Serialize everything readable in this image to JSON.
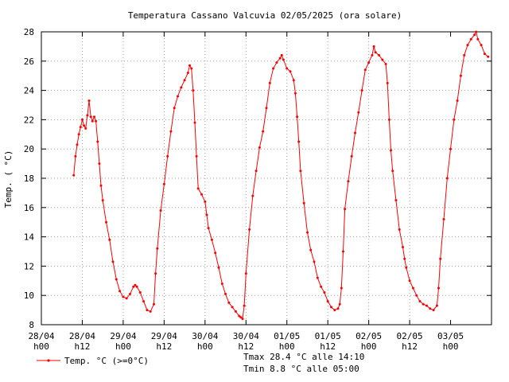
{
  "chart_data": {
    "type": "line",
    "title": "Temperatura Cassano Valcuvia 02/05/2025 (ora solare)",
    "ylabel": "Temp. ( °C)",
    "xlabel": "",
    "ylim": [
      8,
      28
    ],
    "y_ticks": [
      8,
      10,
      12,
      14,
      16,
      18,
      20,
      22,
      24,
      26,
      28
    ],
    "xlim_hours": [
      0,
      132
    ],
    "x_ticks": [
      {
        "hour": 0,
        "line1": "28/04",
        "line2": "h00"
      },
      {
        "hour": 12,
        "line1": "28/04",
        "line2": "h12"
      },
      {
        "hour": 24,
        "line1": "29/04",
        "line2": "h00"
      },
      {
        "hour": 36,
        "line1": "29/04",
        "line2": "h12"
      },
      {
        "hour": 48,
        "line1": "30/04",
        "line2": "h00"
      },
      {
        "hour": 60,
        "line1": "30/04",
        "line2": "h12"
      },
      {
        "hour": 72,
        "line1": "01/05",
        "line2": "h00"
      },
      {
        "hour": 84,
        "line1": "01/05",
        "line2": "h12"
      },
      {
        "hour": 96,
        "line1": "02/05",
        "line2": "h00"
      },
      {
        "hour": 108,
        "line1": "02/05",
        "line2": "h12"
      },
      {
        "hour": 120,
        "line1": "03/05",
        "line2": "h00"
      }
    ],
    "grid": true,
    "legend_position": "bottom-left",
    "series": [
      {
        "name": "Temp. °C (>=0°C)",
        "color": "#ff0000",
        "points": [
          [
            9.5,
            18.2
          ],
          [
            10,
            19.5
          ],
          [
            10.5,
            20.3
          ],
          [
            11,
            21.0
          ],
          [
            11.5,
            21.5
          ],
          [
            12,
            22.0
          ],
          [
            12.5,
            21.6
          ],
          [
            13,
            21.4
          ],
          [
            13.5,
            22.3
          ],
          [
            14,
            23.3
          ],
          [
            14.5,
            22.2
          ],
          [
            15,
            21.9
          ],
          [
            15.5,
            22.2
          ],
          [
            16,
            21.9
          ],
          [
            16.5,
            20.5
          ],
          [
            17,
            19.0
          ],
          [
            17.5,
            17.5
          ],
          [
            18,
            16.5
          ],
          [
            19,
            15.0
          ],
          [
            20,
            13.8
          ],
          [
            21,
            12.3
          ],
          [
            22,
            11.1
          ],
          [
            23,
            10.3
          ],
          [
            24,
            9.9
          ],
          [
            25,
            9.8
          ],
          [
            26,
            10.1
          ],
          [
            27,
            10.6
          ],
          [
            27.5,
            10.7
          ],
          [
            28,
            10.6
          ],
          [
            29,
            10.2
          ],
          [
            30,
            9.6
          ],
          [
            31,
            9.0
          ],
          [
            32,
            8.9
          ],
          [
            33,
            9.4
          ],
          [
            33.5,
            11.5
          ],
          [
            34,
            13.2
          ],
          [
            35,
            15.8
          ],
          [
            36,
            17.6
          ],
          [
            37,
            19.5
          ],
          [
            38,
            21.2
          ],
          [
            39,
            22.8
          ],
          [
            40,
            23.6
          ],
          [
            41,
            24.2
          ],
          [
            42,
            24.7
          ],
          [
            43,
            25.2
          ],
          [
            43.5,
            25.7
          ],
          [
            44,
            25.5
          ],
          [
            44.5,
            24.0
          ],
          [
            45,
            21.8
          ],
          [
            45.5,
            19.5
          ],
          [
            46,
            17.3
          ],
          [
            47,
            16.9
          ],
          [
            48,
            16.4
          ],
          [
            48.5,
            15.5
          ],
          [
            49,
            14.6
          ],
          [
            50,
            13.8
          ],
          [
            51,
            12.9
          ],
          [
            52,
            11.9
          ],
          [
            53,
            10.8
          ],
          [
            54,
            10.1
          ],
          [
            55,
            9.5
          ],
          [
            56,
            9.2
          ],
          [
            57,
            8.9
          ],
          [
            58,
            8.6
          ],
          [
            58.5,
            8.5
          ],
          [
            59,
            8.4
          ],
          [
            59.5,
            9.3
          ],
          [
            60,
            11.5
          ],
          [
            61,
            14.5
          ],
          [
            62,
            16.8
          ],
          [
            63,
            18.5
          ],
          [
            64,
            20.1
          ],
          [
            65,
            21.2
          ],
          [
            66,
            22.8
          ],
          [
            67,
            24.5
          ],
          [
            68,
            25.5
          ],
          [
            69,
            25.9
          ],
          [
            70,
            26.2
          ],
          [
            70.5,
            26.4
          ],
          [
            71,
            26.1
          ],
          [
            72,
            25.5
          ],
          [
            73,
            25.3
          ],
          [
            74,
            24.7
          ],
          [
            74.5,
            23.8
          ],
          [
            75,
            22.2
          ],
          [
            75.5,
            20.5
          ],
          [
            76,
            18.5
          ],
          [
            77,
            16.3
          ],
          [
            78,
            14.3
          ],
          [
            79,
            13.1
          ],
          [
            80,
            12.3
          ],
          [
            81,
            11.2
          ],
          [
            82,
            10.6
          ],
          [
            83,
            10.2
          ],
          [
            84,
            9.6
          ],
          [
            85,
            9.2
          ],
          [
            86,
            9.0
          ],
          [
            87,
            9.1
          ],
          [
            87.5,
            9.4
          ],
          [
            88,
            10.5
          ],
          [
            88.5,
            13.0
          ],
          [
            89,
            15.9
          ],
          [
            90,
            17.8
          ],
          [
            91,
            19.5
          ],
          [
            92,
            21.1
          ],
          [
            93,
            22.5
          ],
          [
            94,
            24.0
          ],
          [
            95,
            25.4
          ],
          [
            96,
            25.9
          ],
          [
            97,
            26.4
          ],
          [
            97.5,
            27.0
          ],
          [
            98,
            26.6
          ],
          [
            99,
            26.4
          ],
          [
            100,
            26.1
          ],
          [
            101,
            25.8
          ],
          [
            101.5,
            24.5
          ],
          [
            102,
            22.0
          ],
          [
            102.5,
            19.9
          ],
          [
            103,
            18.5
          ],
          [
            104,
            16.5
          ],
          [
            105,
            14.5
          ],
          [
            106,
            13.3
          ],
          [
            106.5,
            12.5
          ],
          [
            107,
            11.9
          ],
          [
            108,
            11.0
          ],
          [
            109,
            10.5
          ],
          [
            110,
            10.0
          ],
          [
            111,
            9.6
          ],
          [
            112,
            9.4
          ],
          [
            113,
            9.3
          ],
          [
            114,
            9.1
          ],
          [
            115,
            9.0
          ],
          [
            116,
            9.3
          ],
          [
            116.5,
            10.5
          ],
          [
            117,
            12.5
          ],
          [
            118,
            15.2
          ],
          [
            119,
            18.0
          ],
          [
            120,
            20.0
          ],
          [
            121,
            22.0
          ],
          [
            122,
            23.3
          ],
          [
            123,
            25.0
          ],
          [
            124,
            26.4
          ],
          [
            125,
            27.1
          ],
          [
            126,
            27.5
          ],
          [
            127,
            27.8
          ],
          [
            127.5,
            28.0
          ],
          [
            128,
            27.5
          ],
          [
            129,
            27.1
          ],
          [
            130,
            26.5
          ],
          [
            131,
            26.3
          ]
        ]
      }
    ],
    "annotations": [
      "Tmax 28.4 °C alle 14:10",
      "Tmin 8.8 °C alle 05:00"
    ]
  }
}
